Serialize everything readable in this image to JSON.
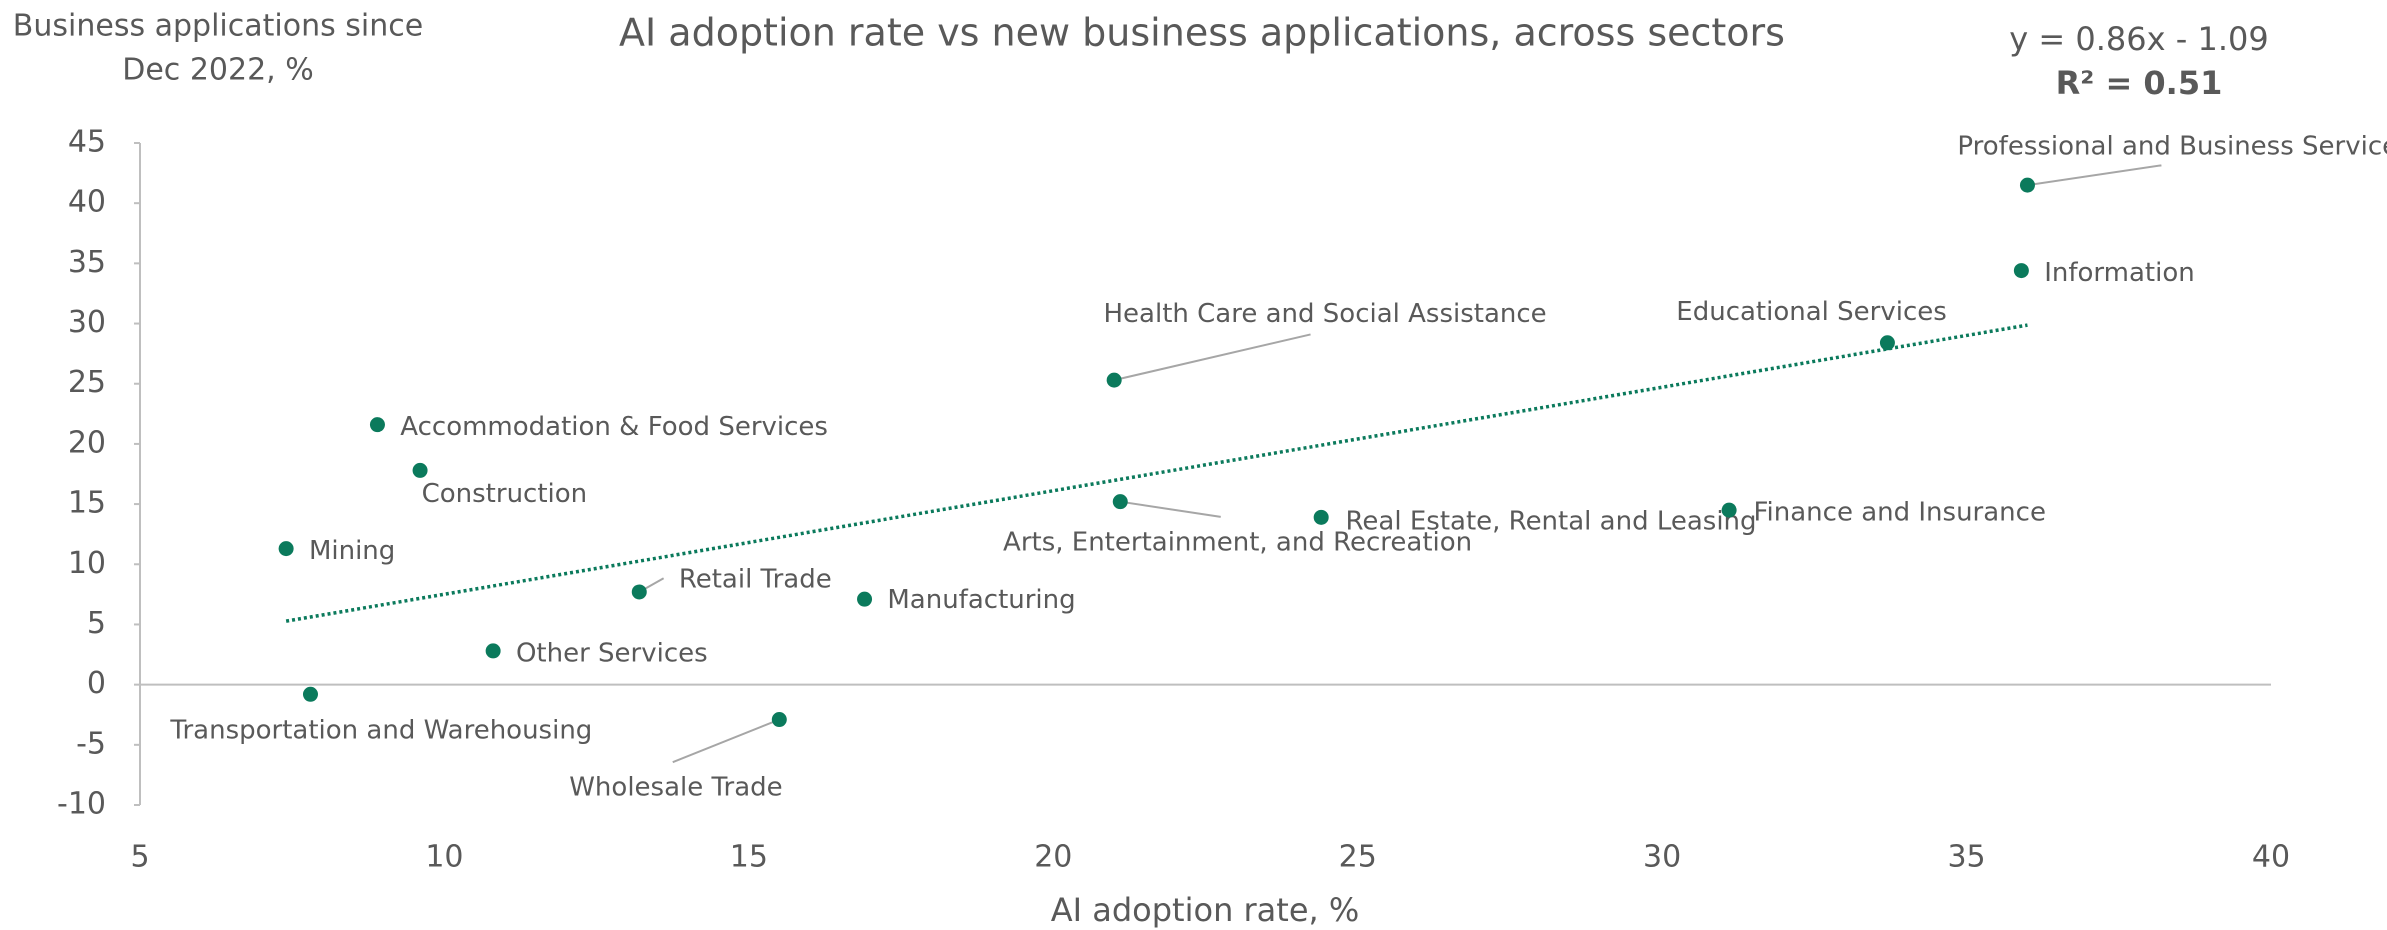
{
  "chart_data": {
    "type": "scatter",
    "title": "AI adoption rate vs new business applications, across sectors",
    "y_label": [
      "Business applications since",
      "Dec 2022, %"
    ],
    "x_label": "AI adoption rate, %",
    "color": "#0b7a5c",
    "points": [
      {
        "name": "Professional and Business Services",
        "x": 36.0,
        "y": 41.5
      },
      {
        "name": "Information",
        "x": 35.9,
        "y": 34.4
      },
      {
        "name": "Educational Services",
        "x": 33.7,
        "y": 28.4
      },
      {
        "name": "Health Care and Social Assistance",
        "x": 21.0,
        "y": 25.3
      },
      {
        "name": "Accommodation & Food Services",
        "x": 8.9,
        "y": 21.6
      },
      {
        "name": "Construction",
        "x": 9.6,
        "y": 17.8
      },
      {
        "name": "Arts, Entertainment, and Recreation",
        "x": 21.1,
        "y": 15.2
      },
      {
        "name": "Real Estate, Rental and Leasing",
        "x": 24.4,
        "y": 13.9
      },
      {
        "name": "Finance and Insurance",
        "x": 31.1,
        "y": 14.5
      },
      {
        "name": "Mining",
        "x": 7.4,
        "y": 11.3
      },
      {
        "name": "Retail Trade",
        "x": 13.2,
        "y": 7.7
      },
      {
        "name": "Manufacturing",
        "x": 16.9,
        "y": 7.1
      },
      {
        "name": "Other Services",
        "x": 10.8,
        "y": 2.8
      },
      {
        "name": "Transportation and Warehousing",
        "x": 7.8,
        "y": -0.8
      },
      {
        "name": "Wholesale Trade",
        "x": 15.5,
        "y": -2.9
      }
    ],
    "trendline": {
      "equation": "y = 0.86x - 1.09",
      "r2": "R² = 0.51",
      "slope": 0.86,
      "intercept": -1.09,
      "x_range": [
        7.4,
        36.0
      ]
    },
    "xlim": [
      5,
      40
    ],
    "xticks": [
      5,
      10,
      15,
      20,
      25,
      30,
      35,
      40
    ],
    "ylim": [
      -10,
      45
    ],
    "yticks": [
      -10,
      -5,
      0,
      5,
      10,
      15,
      20,
      25,
      30,
      35,
      40,
      45
    ]
  }
}
